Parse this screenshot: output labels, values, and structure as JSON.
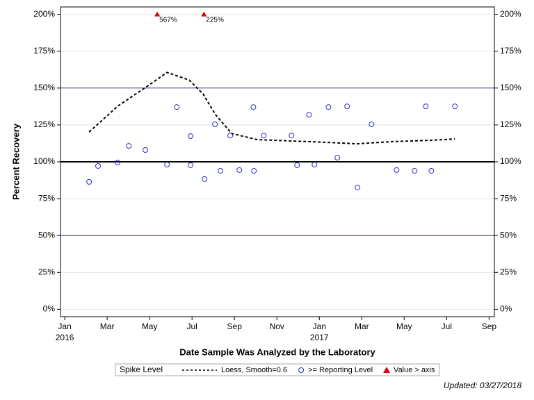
{
  "chart_data": {
    "type": "scatter",
    "x_label": "Date Sample Was Analyzed by the Laboratory",
    "y_label": "Percent Recovery",
    "footnote": "Updated: 03/27/2018",
    "legend_title": "Spike Level",
    "xlim": [
      -0.2,
      20.25
    ],
    "xticks": [
      {
        "value": 0,
        "label": "Jan"
      },
      {
        "value": 2,
        "label": "Mar"
      },
      {
        "value": 4,
        "label": "May"
      },
      {
        "value": 6,
        "label": "Jul"
      },
      {
        "value": 8,
        "label": "Sep"
      },
      {
        "value": 10,
        "label": "Nov"
      },
      {
        "value": 12,
        "label": "Jan"
      },
      {
        "value": 14,
        "label": "Mar"
      },
      {
        "value": 16,
        "label": "May"
      },
      {
        "value": 18,
        "label": "Jul"
      },
      {
        "value": 20,
        "label": "Sep"
      }
    ],
    "x_year_labels": [
      {
        "value": 0,
        "label": "2016"
      },
      {
        "value": 12,
        "label": "2017"
      }
    ],
    "ylim": [
      -5,
      205
    ],
    "yticks": [
      {
        "value": 0,
        "label": "0%"
      },
      {
        "value": 25,
        "label": "25%"
      },
      {
        "value": 50,
        "label": "50%"
      },
      {
        "value": 75,
        "label": "75%"
      },
      {
        "value": 100,
        "label": "100%"
      },
      {
        "value": 125,
        "label": "125%"
      },
      {
        "value": 150,
        "label": "150%"
      },
      {
        "value": 175,
        "label": "175%"
      },
      {
        "value": 200,
        "label": "200%"
      }
    ],
    "grid": true,
    "reference_lines": [
      {
        "value": 50,
        "color": "#3030a0",
        "width": 1
      },
      {
        "value": 100,
        "color": "#000000",
        "width": 2
      },
      {
        "value": 150,
        "color": "#3030a0",
        "width": 1
      }
    ],
    "series": [
      {
        "name": "Loess, Smooth=0.6",
        "mark": "line",
        "color": "#000000",
        "x": [
          1.15,
          2.52,
          3.84,
          4.82,
          5.87,
          6.52,
          7.11,
          7.87,
          9.08,
          11.7,
          13.77,
          15.31,
          17.28,
          18.39
        ],
        "values": [
          120.2,
          138.0,
          150.7,
          160.6,
          155.4,
          146.0,
          131.9,
          119.2,
          115.0,
          113.6,
          112.2,
          113.6,
          114.6,
          115.5
        ]
      },
      {
        "name": ">= Reporting Level",
        "mark": "circle",
        "color": "#2b2bc8",
        "x": [
          1.15,
          1.57,
          2.49,
          3.02,
          3.8,
          4.82,
          5.28,
          5.93,
          5.93,
          6.59,
          7.08,
          7.34,
          7.8,
          8.23,
          8.89,
          8.92,
          9.38,
          10.69,
          10.95,
          11.51,
          11.77,
          12.43,
          12.85,
          13.31,
          13.8,
          14.46,
          15.64,
          16.49,
          17.02,
          17.28,
          18.39
        ],
        "values": [
          86.4,
          97.2,
          99.5,
          110.8,
          108.0,
          98.1,
          137.1,
          117.4,
          97.7,
          88.3,
          125.4,
          93.9,
          117.8,
          94.4,
          137.1,
          93.9,
          117.8,
          117.8,
          97.7,
          131.9,
          98.1,
          137.1,
          102.8,
          137.6,
          82.6,
          125.4,
          94.4,
          93.9,
          137.6,
          93.9,
          137.6
        ]
      },
      {
        "name": "Value > axis",
        "mark": "triangle",
        "color": "#e00000",
        "x": [
          4.36,
          6.56
        ],
        "values": [
          567,
          225
        ],
        "value_labels": [
          "567%",
          "225%"
        ]
      }
    ]
  }
}
